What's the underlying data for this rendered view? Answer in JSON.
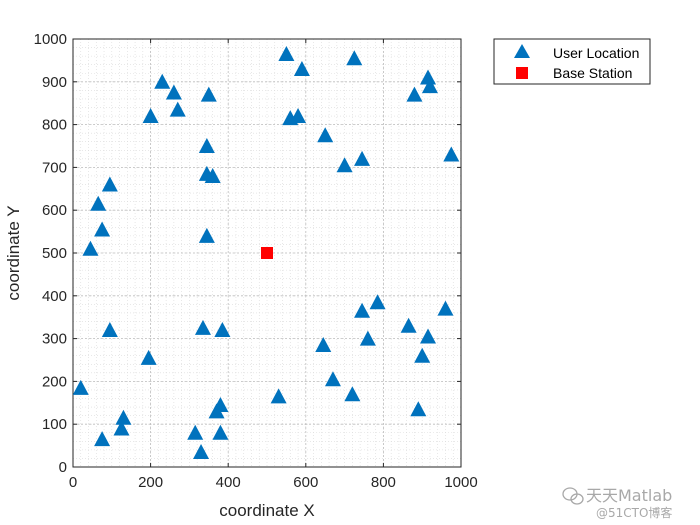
{
  "chart_data": {
    "type": "scatter",
    "xlabel": "coordinate X",
    "ylabel": "coordinate Y",
    "xlim": [
      0,
      1000
    ],
    "ylim": [
      0,
      1000
    ],
    "xticks": [
      0,
      200,
      400,
      600,
      800,
      1000
    ],
    "yticks": [
      0,
      100,
      200,
      300,
      400,
      500,
      600,
      700,
      800,
      900,
      1000
    ],
    "grid": "major and minor, dotted",
    "legend_position": "outside top-right",
    "series": [
      {
        "name": "User Location",
        "marker": "triangle",
        "color": "#0072BD",
        "points": [
          [
            550,
            965
          ],
          [
            725,
            955
          ],
          [
            590,
            930
          ],
          [
            230,
            900
          ],
          [
            915,
            910
          ],
          [
            260,
            875
          ],
          [
            350,
            870
          ],
          [
            880,
            870
          ],
          [
            920,
            890
          ],
          [
            270,
            835
          ],
          [
            200,
            820
          ],
          [
            560,
            815
          ],
          [
            580,
            820
          ],
          [
            650,
            775
          ],
          [
            345,
            750
          ],
          [
            975,
            730
          ],
          [
            745,
            720
          ],
          [
            700,
            705
          ],
          [
            345,
            685
          ],
          [
            360,
            680
          ],
          [
            95,
            660
          ],
          [
            65,
            615
          ],
          [
            75,
            555
          ],
          [
            345,
            540
          ],
          [
            45,
            510
          ],
          [
            960,
            370
          ],
          [
            785,
            385
          ],
          [
            745,
            365
          ],
          [
            865,
            330
          ],
          [
            915,
            305
          ],
          [
            335,
            325
          ],
          [
            385,
            320
          ],
          [
            95,
            320
          ],
          [
            760,
            300
          ],
          [
            645,
            285
          ],
          [
            900,
            260
          ],
          [
            195,
            255
          ],
          [
            670,
            205
          ],
          [
            20,
            185
          ],
          [
            720,
            170
          ],
          [
            530,
            165
          ],
          [
            380,
            145
          ],
          [
            370,
            130
          ],
          [
            890,
            135
          ],
          [
            130,
            115
          ],
          [
            125,
            90
          ],
          [
            315,
            80
          ],
          [
            380,
            80
          ],
          [
            75,
            65
          ],
          [
            330,
            35
          ]
        ]
      },
      {
        "name": "Base Station",
        "marker": "square",
        "color": "#FF0000",
        "points": [
          [
            500,
            500
          ]
        ]
      }
    ]
  },
  "watermark": {
    "line1": "天天Matlab",
    "line2": "@51CTO博客"
  }
}
